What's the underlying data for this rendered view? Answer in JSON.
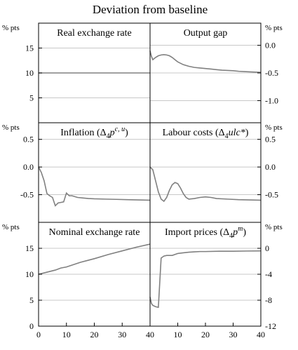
{
  "chart_data": {
    "type": "line",
    "title": "Deviation from baseline",
    "unit": "% pts",
    "x_ticks": [
      "0",
      "10",
      "20",
      "30",
      "40"
    ],
    "xlim": [
      0,
      40
    ],
    "panels": [
      {
        "id": "rer",
        "title": "Real exchange rate",
        "row": 0,
        "col": 0,
        "ylim": [
          0,
          20
        ],
        "yticks": [
          15,
          10,
          5
        ],
        "ytick_labels": [
          "15",
          "10",
          "5"
        ],
        "axis_side": "left",
        "x": [
          0,
          40
        ],
        "y": [
          10,
          10
        ]
      },
      {
        "id": "gap",
        "title": "Output gap",
        "row": 0,
        "col": 1,
        "ylim": [
          -1.4,
          0.4
        ],
        "yticks": [
          0.0,
          -0.5,
          -1.0
        ],
        "ytick_labels": [
          "0.0",
          "-0.5",
          "-1.0"
        ],
        "axis_side": "right",
        "x": [
          0,
          0.5,
          1,
          1.5,
          2,
          3,
          4,
          5,
          6,
          7,
          8,
          9,
          10,
          12,
          14,
          16,
          18,
          20,
          22,
          24,
          26,
          28,
          30,
          32,
          34,
          36,
          38,
          40
        ],
        "y": [
          -0.1,
          -0.2,
          -0.26,
          -0.24,
          -0.22,
          -0.19,
          -0.175,
          -0.17,
          -0.175,
          -0.19,
          -0.22,
          -0.26,
          -0.3,
          -0.35,
          -0.38,
          -0.4,
          -0.41,
          -0.42,
          -0.43,
          -0.44,
          -0.45,
          -0.455,
          -0.46,
          -0.47,
          -0.475,
          -0.48,
          -0.485,
          -0.49
        ]
      },
      {
        "id": "inf",
        "title_parts": [
          "Inflation (Δ",
          "4",
          "p",
          "c, u",
          ")"
        ],
        "row": 1,
        "col": 0,
        "ylim": [
          -1.0,
          0.8
        ],
        "yticks": [
          0.5,
          0.0,
          -0.5
        ],
        "ytick_labels": [
          "0.5",
          "0.0",
          "-0.5"
        ],
        "axis_side": "left",
        "x": [
          0,
          1,
          2,
          3,
          4,
          5,
          6,
          7,
          8,
          9,
          10,
          11,
          12,
          14,
          16,
          18,
          20,
          24,
          28,
          32,
          36,
          40
        ],
        "y": [
          0.0,
          -0.1,
          -0.25,
          -0.48,
          -0.52,
          -0.55,
          -0.7,
          -0.65,
          -0.64,
          -0.63,
          -0.47,
          -0.52,
          -0.52,
          -0.55,
          -0.56,
          -0.57,
          -0.575,
          -0.58,
          -0.585,
          -0.59,
          -0.595,
          -0.6
        ]
      },
      {
        "id": "ulc",
        "title_parts": [
          "Labour costs (Δ",
          "4",
          "ulc*",
          "",
          ")"
        ],
        "row": 1,
        "col": 1,
        "ylim": [
          -1.0,
          0.8
        ],
        "yticks": [
          0.5,
          0.0,
          -0.5
        ],
        "ytick_labels": [
          "0.5",
          "0.0",
          "-0.5"
        ],
        "axis_side": "right",
        "x": [
          0,
          1,
          2,
          3,
          4,
          5,
          6,
          7,
          8,
          9,
          10,
          11,
          12,
          13,
          14,
          16,
          18,
          20,
          22,
          24,
          28,
          32,
          36,
          40
        ],
        "y": [
          0.0,
          -0.05,
          -0.25,
          -0.45,
          -0.58,
          -0.62,
          -0.55,
          -0.42,
          -0.32,
          -0.28,
          -0.3,
          -0.38,
          -0.48,
          -0.55,
          -0.58,
          -0.57,
          -0.55,
          -0.54,
          -0.55,
          -0.57,
          -0.58,
          -0.59,
          -0.595,
          -0.6
        ]
      },
      {
        "id": "ner",
        "title": "Nominal exchange rate",
        "row": 2,
        "col": 0,
        "ylim": [
          0,
          20
        ],
        "yticks": [
          15,
          10,
          5,
          0
        ],
        "ytick_labels": [
          "15",
          "10",
          "5",
          "0"
        ],
        "axis_side": "left",
        "x": [
          0,
          3,
          6,
          8,
          10,
          15,
          20,
          25,
          30,
          35,
          40
        ],
        "y": [
          10,
          10.4,
          10.8,
          11.2,
          11.4,
          12.3,
          13.0,
          13.8,
          14.5,
          15.2,
          15.8
        ]
      },
      {
        "id": "imp",
        "title_parts": [
          "Import prices (Δ",
          "4",
          "p",
          "m",
          ")"
        ],
        "row": 2,
        "col": 1,
        "ylim": [
          -12,
          4
        ],
        "yticks": [
          0,
          -4,
          -8,
          -12
        ],
        "ytick_labels": [
          "0",
          "-4",
          "-8",
          "-12"
        ],
        "axis_side": "right",
        "x": [
          0,
          0.5,
          1,
          2,
          3,
          4,
          5,
          6,
          8,
          10,
          12,
          14,
          16,
          18,
          20,
          25,
          30,
          35,
          40
        ],
        "y": [
          -7.5,
          -8.5,
          -8.8,
          -9.0,
          -9.1,
          -1.5,
          -1.2,
          -1.1,
          -1.1,
          -0.8,
          -0.7,
          -0.6,
          -0.55,
          -0.5,
          -0.5,
          -0.45,
          -0.45,
          -0.42,
          -0.4
        ]
      }
    ]
  }
}
